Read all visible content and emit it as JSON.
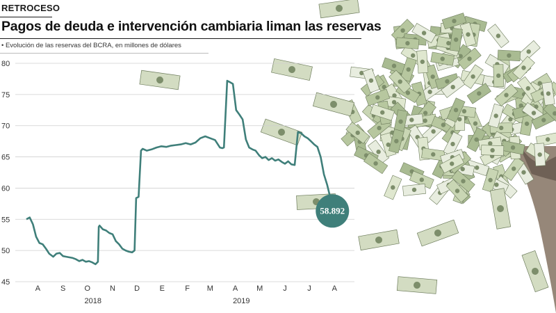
{
  "header": {
    "kicker": "RETROCESO",
    "title": "Pagos de deuda e intervención cambiaria liman las reservas",
    "subtitle": "• Evolución de las reservas del BCRA, en millones de dólares"
  },
  "illustration": {
    "subject": "money-tree",
    "description_icon": "dollar-bills-tree"
  },
  "colors": {
    "line": "#3f7f7a",
    "callout": "#3f7f7a",
    "bill": "#c9d6b4",
    "trunk": "#8b7a6a"
  },
  "chart_data": {
    "type": "line",
    "title": "Pagos de deuda e intervención cambiaria liman las reservas",
    "subtitle": "Evolución de las reservas del BCRA, en millones de dólares",
    "xlabel": "",
    "ylabel": "",
    "ylim": [
      45,
      80
    ],
    "yticks": [
      45,
      50,
      55,
      60,
      65,
      70,
      75,
      80
    ],
    "grid": true,
    "month_ticks": [
      "A",
      "S",
      "O",
      "N",
      "D",
      "E",
      "F",
      "M",
      "A",
      "M",
      "J",
      "J",
      "A"
    ],
    "year_labels": [
      "2018",
      "2019"
    ],
    "last_value_label": "58.892",
    "x": [
      "2018-08-01",
      "2018-08-05",
      "2018-08-09",
      "2018-08-13",
      "2018-08-17",
      "2018-08-21",
      "2018-08-25",
      "2018-08-29",
      "2018-09-03",
      "2018-09-07",
      "2018-09-11",
      "2018-09-15",
      "2018-09-19",
      "2018-09-23",
      "2018-09-27",
      "2018-10-01",
      "2018-10-05",
      "2018-10-09",
      "2018-10-13",
      "2018-10-17",
      "2018-10-21",
      "2018-10-25",
      "2018-10-28",
      "2018-10-29",
      "2018-10-30",
      "2018-11-03",
      "2018-11-07",
      "2018-11-11",
      "2018-11-15",
      "2018-11-19",
      "2018-11-23",
      "2018-11-27",
      "2018-12-01",
      "2018-12-05",
      "2018-12-09",
      "2018-12-12",
      "2018-12-14",
      "2018-12-17",
      "2018-12-20",
      "2018-12-22",
      "2018-12-27",
      "2019-01-02",
      "2019-01-08",
      "2019-01-14",
      "2019-01-20",
      "2019-01-26",
      "2019-02-01",
      "2019-02-07",
      "2019-02-13",
      "2019-02-19",
      "2019-02-25",
      "2019-03-03",
      "2019-03-09",
      "2019-03-15",
      "2019-03-21",
      "2019-03-27",
      "2019-03-30",
      "2019-04-01",
      "2019-04-05",
      "2019-04-08",
      "2019-04-12",
      "2019-04-16",
      "2019-04-20",
      "2019-04-24",
      "2019-04-28",
      "2019-05-02",
      "2019-05-06",
      "2019-05-10",
      "2019-05-14",
      "2019-05-18",
      "2019-05-22",
      "2019-05-26",
      "2019-05-30",
      "2019-06-03",
      "2019-06-07",
      "2019-06-11",
      "2019-06-15",
      "2019-06-19",
      "2019-06-23",
      "2019-06-27",
      "2019-07-01",
      "2019-07-05",
      "2019-07-09",
      "2019-07-13",
      "2019-07-17",
      "2019-07-21",
      "2019-07-25",
      "2019-07-29",
      "2019-08-02",
      "2019-08-06",
      "2019-08-09"
    ],
    "series": [
      {
        "values": [
          55.0,
          55.3,
          54.2,
          52.2,
          51.2,
          51.0,
          50.3,
          49.5,
          49.0,
          49.5,
          49.6,
          49.1,
          49.0,
          48.9,
          48.8,
          48.6,
          48.3,
          48.5,
          48.2,
          48.3,
          48.1,
          47.8,
          48.2,
          53.8,
          54.0,
          53.4,
          53.2,
          52.8,
          52.6,
          51.5,
          51.0,
          50.3,
          50.0,
          49.8,
          49.7,
          50.0,
          58.4,
          58.6,
          66.0,
          66.3,
          66.0,
          66.2,
          66.5,
          66.7,
          66.6,
          66.8,
          66.9,
          67.0,
          67.2,
          67.0,
          67.3,
          68.0,
          68.3,
          68.0,
          67.7,
          66.5,
          66.4,
          66.5,
          77.2,
          77.0,
          76.7,
          72.5,
          71.8,
          71.0,
          67.8,
          66.5,
          66.2,
          66.0,
          65.3,
          64.8,
          65.0,
          64.5,
          64.8,
          64.4,
          64.6,
          64.2,
          63.9,
          64.3,
          63.8,
          63.7,
          69.0,
          68.8,
          68.3,
          68.0,
          67.5,
          67.0,
          66.6,
          65.0,
          62.2,
          60.5,
          58.9
        ]
      }
    ]
  }
}
